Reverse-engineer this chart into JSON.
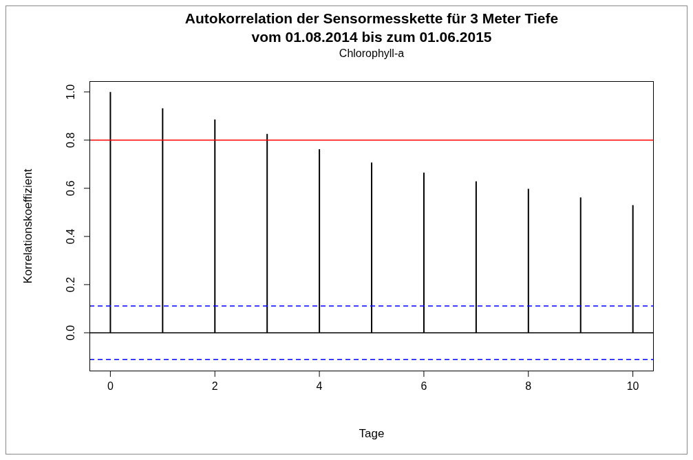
{
  "chart_data": {
    "type": "bar",
    "title": "Autokorrelation der Sensormesskette für 3 Meter Tiefe\nvom 01.08.2014 bis zum 01.06.2015",
    "subtitle": "Chlorophyll-a",
    "xlabel": "Tage",
    "ylabel": "Korrelationskoeffizient",
    "x": [
      0,
      1,
      2,
      3,
      4,
      5,
      6,
      7,
      8,
      9,
      10
    ],
    "values": [
      1.0,
      0.932,
      0.886,
      0.826,
      0.762,
      0.707,
      0.665,
      0.629,
      0.598,
      0.562,
      0.53
    ],
    "color": "#000000",
    "xlim": [
      -0.4,
      10.4
    ],
    "xticks": [
      0,
      2,
      4,
      6,
      8,
      10
    ],
    "ylim": [
      -0.16,
      1.045
    ],
    "yticks": [
      {
        "value": 0,
        "label": "0.0"
      },
      {
        "value": 0.2,
        "label": "0.2"
      },
      {
        "value": 0.4,
        "label": "0.4"
      },
      {
        "value": 0.6,
        "label": "0.6"
      },
      {
        "value": 0.8,
        "label": "0.8"
      },
      {
        "value": 1,
        "label": "1.0"
      }
    ],
    "ref_lines": [
      {
        "axis": "y",
        "value": 0.8,
        "color": "#ff0000",
        "line_style": "solid"
      },
      {
        "axis": "y",
        "value": 0,
        "color": "#000000",
        "line_style": "solid"
      },
      {
        "axis": "y",
        "value": 0.111,
        "color": "#0000ff",
        "line_style": "dashed"
      },
      {
        "axis": "y",
        "value": -0.111,
        "color": "#0000ff",
        "line_style": "dashed"
      }
    ],
    "grid": false,
    "legend": false
  }
}
